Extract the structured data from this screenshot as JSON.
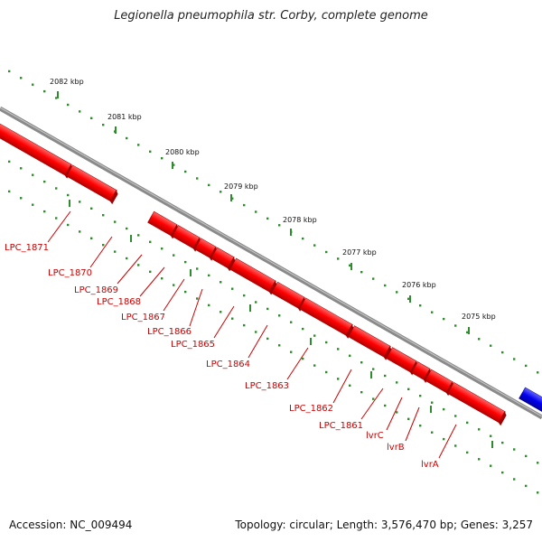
{
  "title": "Legionella pneumophila str. Corby, complete genome",
  "footer": {
    "accession": "Accession: NC_009494",
    "stats": "Topology: circular; Length: 3,576,470 bp; Genes: 3,257"
  },
  "colors": {
    "forward_gene": "#ff0000",
    "reverse_gene": "#0000ee",
    "backbone": "#8a8a8a",
    "ticks": "#2e8b2e",
    "gene_label": "#cc0000"
  },
  "scale_ticks": [
    "2082 kbp",
    "2081 kbp",
    "2080 kbp",
    "2079 kbp",
    "2078 kbp",
    "2077 kbp",
    "2076 kbp",
    "2075 kbp"
  ],
  "genes": [
    "LPC_1871",
    "LPC_1870",
    "LPC_1869",
    "LPC_1868",
    "LPC_1867",
    "LPC_1866",
    "LPC_1865",
    "LPC_1864",
    "LPC_1863",
    "LPC_1862",
    "LPC_1861",
    "lvrC",
    "lvrB",
    "lvrA"
  ]
}
